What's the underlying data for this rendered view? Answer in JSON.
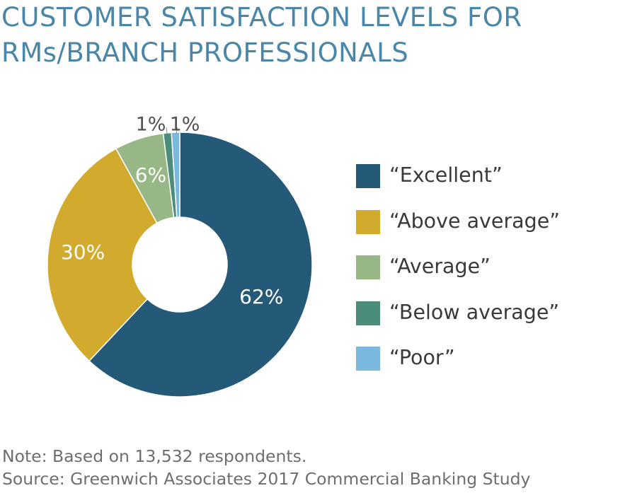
{
  "title": {
    "line1": "CUSTOMER SATISFACTION LEVELS FOR",
    "line2": "RMs/BRANCH PROFESSIONALS"
  },
  "chart_data": {
    "type": "pie",
    "variant": "donut",
    "title": "CUSTOMER SATISFACTION LEVELS FOR RMs/BRANCH PROFESSIONALS",
    "categories": [
      "“Excellent”",
      "“Above average”",
      "“Average”",
      "“Below average”",
      "“Poor”"
    ],
    "values": [
      62,
      30,
      6,
      1,
      1
    ],
    "data_labels": [
      "62%",
      "30%",
      "6%",
      "1%",
      "1%"
    ],
    "colors": [
      "#245a78",
      "#d2aa2d",
      "#97b886",
      "#4b8c7b",
      "#7ab8dd"
    ],
    "legend_position": "right"
  },
  "footnote": {
    "note": "Note: Based on 13,532 respondents.",
    "source": "Source: Greenwich Associates 2017 Commercial Banking Study"
  }
}
